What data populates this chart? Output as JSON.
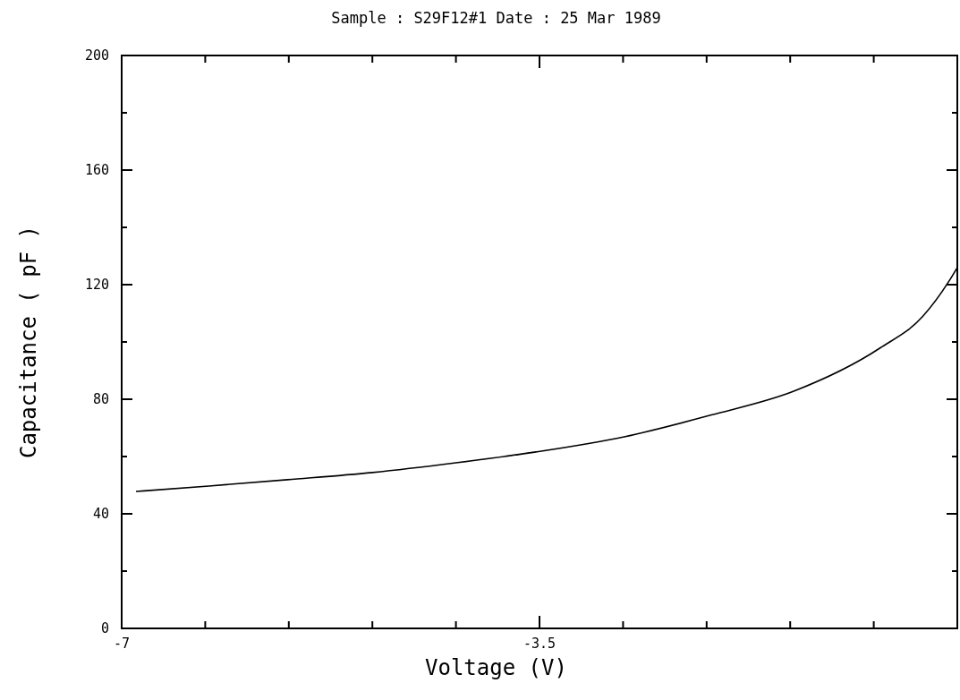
{
  "chart_data": {
    "type": "line",
    "title": "Sample : S29F12#1 Date : 25 Mar 1989",
    "xlabel": "Voltage (V)",
    "ylabel": "Capacitance ( pF )",
    "x": [
      -6.88,
      -6.27,
      -5.61,
      -4.9,
      -4.2,
      -3.53,
      -2.79,
      -2.06,
      -1.37,
      -0.65,
      -0.29,
      -0.07,
      0
    ],
    "series": [
      {
        "color": "#000000",
        "values": [
          47.8,
          49.7,
          51.9,
          54.4,
          57.8,
          61.6,
          66.9,
          74.5,
          82.8,
          97.8,
          108.9,
          121.2,
          126
        ]
      }
    ],
    "xlim": [
      -7,
      0
    ],
    "xticks": [
      {
        "value": -7,
        "label": "-7"
      },
      {
        "value": -6.3,
        "label": null
      },
      {
        "value": -5.6,
        "label": null
      },
      {
        "value": -4.9,
        "label": null
      },
      {
        "value": -4.2,
        "label": null
      },
      {
        "value": -3.5,
        "label": "-3.5"
      },
      {
        "value": -2.8,
        "label": null
      },
      {
        "value": -2.1,
        "label": null
      },
      {
        "value": -1.4,
        "label": null
      },
      {
        "value": -0.7,
        "label": null
      }
    ],
    "ylim": [
      0,
      200
    ],
    "yticks": [
      0,
      {
        "value": 20,
        "label": null
      },
      40,
      {
        "value": 60,
        "label": null
      },
      80,
      {
        "value": 100,
        "label": null
      },
      120,
      {
        "value": 140,
        "label": null
      },
      160,
      {
        "value": 180,
        "label": null
      },
      200
    ],
    "marker": "none",
    "line_style": "solid"
  }
}
